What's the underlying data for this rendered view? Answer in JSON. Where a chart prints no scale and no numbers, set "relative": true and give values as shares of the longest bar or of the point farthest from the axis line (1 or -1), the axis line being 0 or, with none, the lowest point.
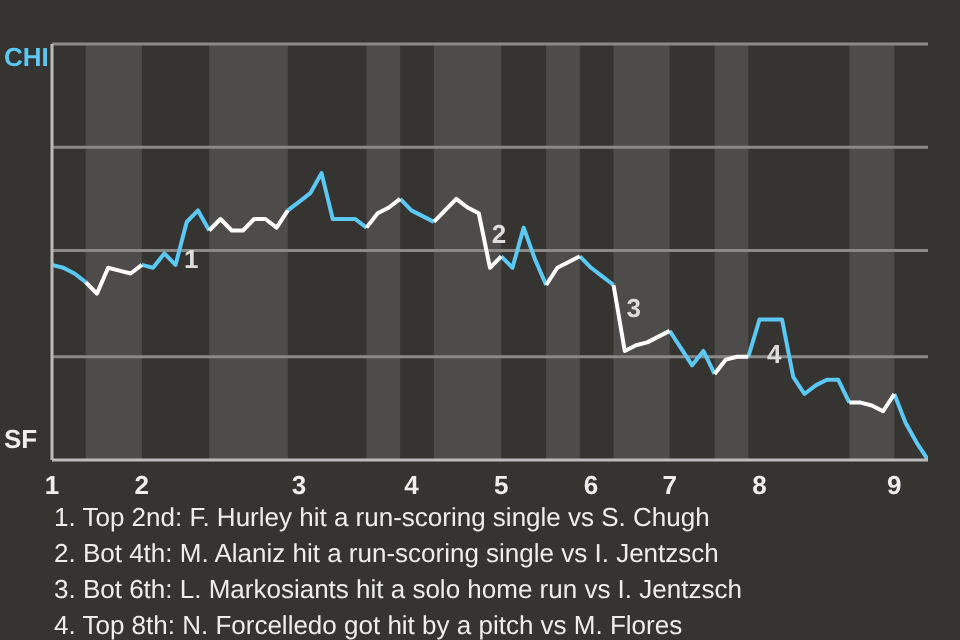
{
  "chart_data": {
    "type": "line",
    "categories": [
      "1",
      null,
      null,
      null,
      null,
      null,
      null,
      null,
      "2",
      null,
      null,
      null,
      null,
      null,
      null,
      null,
      null,
      null,
      null,
      null,
      null,
      null,
      "3",
      null,
      null,
      null,
      null,
      null,
      null,
      null,
      null,
      null,
      "4",
      null,
      null,
      null,
      null,
      null,
      null,
      null,
      "5",
      null,
      null,
      null,
      null,
      null,
      null,
      null,
      "6",
      null,
      null,
      null,
      null,
      null,
      null,
      "7",
      null,
      null,
      null,
      null,
      null,
      null,
      null,
      "8",
      null,
      null,
      null,
      null,
      null,
      null,
      null,
      null,
      null,
      null,
      null,
      "9",
      null,
      null,
      null
    ],
    "relative": true,
    "series": [
      {
        "color": "#5bc8f5",
        "values": [
          0.68,
          0.67,
          0.65,
          0.62,
          null,
          null,
          null,
          null,
          0.68,
          0.67,
          0.72,
          0.68,
          0.83,
          0.87,
          0.8,
          null,
          null,
          null,
          null,
          null,
          null,
          0.87,
          0.9,
          0.93,
          1,
          0.84,
          0.84,
          0.84,
          0.81,
          null,
          null,
          0.91,
          0.87,
          0.85,
          0.83,
          null,
          null,
          null,
          null,
          null,
          0.71,
          0.67,
          0.81,
          0.7,
          0.61,
          null,
          null,
          0.71,
          0.67,
          0.64,
          0.61,
          null,
          null,
          null,
          null,
          0.45,
          0.39,
          0.33,
          0.38,
          0.3,
          null,
          null,
          0.36,
          0.49,
          0.49,
          0.49,
          0.29,
          0.23,
          0.26,
          0.28,
          0.28,
          0.2,
          null,
          null,
          null,
          0.23,
          0.13,
          0.06,
          0
        ]
      },
      {
        "color": "#ffffff",
        "values": [
          null,
          null,
          null,
          0.62,
          0.58,
          0.67,
          0.66,
          0.65,
          0.68,
          null,
          null,
          null,
          null,
          null,
          0.8,
          0.84,
          0.8,
          0.8,
          0.84,
          0.84,
          0.81,
          0.87,
          null,
          null,
          null,
          null,
          null,
          null,
          0.81,
          0.86,
          0.88,
          0.91,
          null,
          null,
          0.83,
          0.87,
          0.91,
          0.88,
          0.86,
          0.67,
          0.71,
          null,
          null,
          null,
          0.61,
          0.67,
          0.69,
          0.71,
          null,
          null,
          0.61,
          0.38,
          0.4,
          0.41,
          0.43,
          0.45,
          null,
          null,
          null,
          0.3,
          0.35,
          0.36,
          0.36,
          null,
          null,
          null,
          null,
          null,
          null,
          null,
          null,
          0.2,
          0.2,
          0.19,
          0.17,
          0.23,
          null,
          null,
          null
        ]
      }
    ],
    "ref_lines": [
      {
        "axis": "y",
        "value": 0.36,
        "color": "#8a8986"
      },
      {
        "axis": "y",
        "value": 0.73,
        "color": "#8a8986"
      },
      {
        "axis": "y",
        "value": 1.09,
        "color": "#8a8986"
      },
      {
        "axis": "y",
        "value": 1.45,
        "color": "#8a8986"
      }
    ],
    "legend": false,
    "marker": "none",
    "line_style": "solid",
    "annotations": [
      "CHI",
      "SF",
      "1",
      "2",
      "3",
      "4",
      "1. Top 2nd: F. Hurley hit a run-scoring single vs S. Chugh",
      "2. Bot 4th: M. Alaniz hit a run-scoring single vs I. Jentzsch",
      "3. Bot 6th: L. Markosiants hit a solo home run vs I. Jentzsch",
      "4. Top 8th: N. Forcelledo got hit by a pitch vs M. Flores"
    ]
  }
}
